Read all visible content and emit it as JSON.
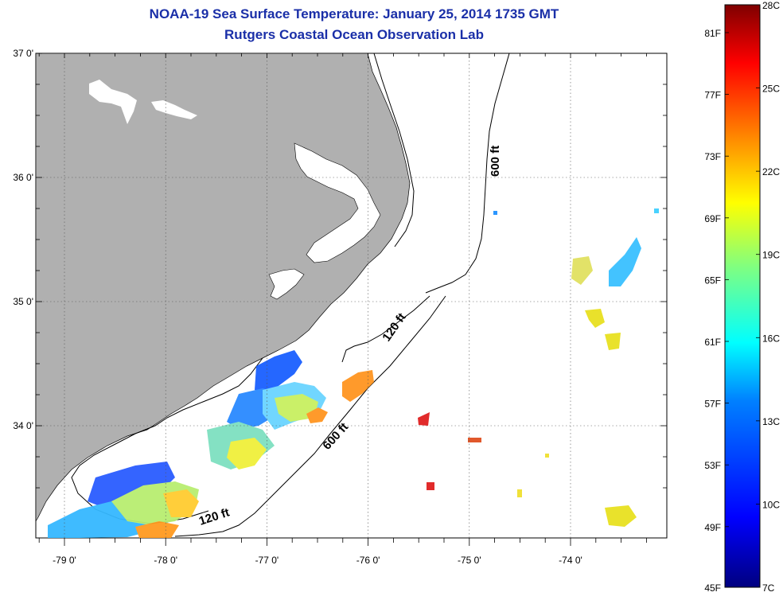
{
  "title": "NOAA-19 Sea Surface Temperature:  January 25, 2014 1735 GMT",
  "subtitle": "Rutgers Coastal Ocean Observation Lab",
  "lat_labels": [
    {
      "value": 37,
      "label": "37 0'"
    },
    {
      "value": 36,
      "label": "36 0'"
    },
    {
      "value": 35,
      "label": "35 0'"
    },
    {
      "value": 34,
      "label": "34 0'"
    }
  ],
  "lon_labels": [
    {
      "value": -79,
      "label": "-79 0'"
    },
    {
      "value": -78,
      "label": "-78 0'"
    },
    {
      "value": -77,
      "label": "-77 0'"
    },
    {
      "value": -76,
      "label": "-76 0'"
    },
    {
      "value": -75,
      "label": "-75 0'"
    },
    {
      "value": -74,
      "label": "-74 0'"
    }
  ],
  "contours": [
    {
      "label": "600 ft"
    },
    {
      "label": "120 ft"
    },
    {
      "label": "600 ft"
    },
    {
      "label": "120 ft"
    }
  ],
  "colorbar": {
    "celsius": [
      "28C",
      "25C",
      "22C",
      "19C",
      "16C",
      "13C",
      "10C",
      "7C"
    ],
    "fahrenheit": [
      "81F",
      "77F",
      "73F",
      "69F",
      "65F",
      "61F",
      "57F",
      "53F",
      "49F",
      "45F"
    ],
    "colors": [
      "#00007f",
      "#0000ff",
      "#0080ff",
      "#00ffff",
      "#80ff80",
      "#ffff00",
      "#ff8000",
      "#ff0000",
      "#7f0000"
    ]
  },
  "colors": {
    "land": "#b0b0b0",
    "title": "#1a2fa8"
  }
}
